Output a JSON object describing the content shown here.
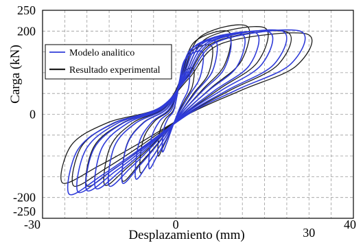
{
  "chart_data": {
    "type": "line",
    "xlabel": "Desplazamiento (mm)",
    "ylabel": "Carga (kN)",
    "xlim": [
      -30,
      40
    ],
    "ylim": [
      -250,
      250
    ],
    "x_ticks": [
      -30,
      0,
      30,
      40
    ],
    "y_ticks": [
      250,
      200,
      0,
      -200,
      -250
    ],
    "grid": true,
    "legend": "top-left",
    "series": [
      {
        "name": "Modelo analitico",
        "color": "#2f3bd8",
        "loops": [
          [
            [
              -3,
              -90
            ],
            [
              -2.8,
              -41
            ],
            [
              -1.8,
              -11
            ],
            [
              -0.5,
              8
            ],
            [
              0.3,
              45
            ],
            [
              1.1,
              88
            ],
            [
              3,
              100
            ],
            [
              2.8,
              60
            ],
            [
              1.5,
              30
            ],
            [
              0.4,
              2
            ],
            [
              -1.1,
              -41
            ],
            [
              -2,
              -68
            ]
          ],
          [
            [
              -6,
              -130
            ],
            [
              -5.5,
              -59
            ],
            [
              -3.6,
              -16
            ],
            [
              -0.9,
              12
            ],
            [
              0.6,
              68
            ],
            [
              2.1,
              132
            ],
            [
              6,
              150
            ],
            [
              5.5,
              90
            ],
            [
              3,
              45
            ],
            [
              0.7,
              3
            ],
            [
              -2.1,
              -59
            ],
            [
              -4.1,
              -98
            ]
          ],
          [
            [
              -9,
              -155
            ],
            [
              -8.3,
              -70
            ],
            [
              -5.4,
              -19
            ],
            [
              -1.4,
              14
            ],
            [
              0.9,
              79
            ],
            [
              3.2,
              154
            ],
            [
              9,
              175
            ],
            [
              8.3,
              105
            ],
            [
              4.5,
              53
            ],
            [
              1.1,
              4
            ],
            [
              -3.2,
              -70
            ],
            [
              -6.1,
              -116
            ]
          ],
          [
            [
              -12,
              -165
            ],
            [
              -11,
              -74
            ],
            [
              -7.2,
              -20
            ],
            [
              -1.8,
              15
            ],
            [
              1.2,
              83
            ],
            [
              4.2,
              163
            ],
            [
              12,
              185
            ],
            [
              11,
              111
            ],
            [
              6,
              56
            ],
            [
              1.4,
              4
            ],
            [
              -4.2,
              -74
            ],
            [
              -8.2,
              -124
            ]
          ],
          [
            [
              -15,
              -172
            ],
            [
              -13.8,
              -77
            ],
            [
              -9,
              -21
            ],
            [
              -2.3,
              15
            ],
            [
              1.5,
              86
            ],
            [
              5.3,
              169
            ],
            [
              15,
              192
            ],
            [
              13.8,
              115
            ],
            [
              7.5,
              58
            ],
            [
              1.8,
              4
            ],
            [
              -5.3,
              -77
            ],
            [
              -10.2,
              -129
            ]
          ],
          [
            [
              -18,
              -178
            ],
            [
              -16.6,
              -80
            ],
            [
              -10.8,
              -21
            ],
            [
              -2.7,
              16
            ],
            [
              1.8,
              88
            ],
            [
              6.3,
              172
            ],
            [
              18,
              196
            ],
            [
              16.6,
              118
            ],
            [
              9,
              59
            ],
            [
              2.2,
              4
            ],
            [
              -6.3,
              -80
            ],
            [
              -12.2,
              -134
            ]
          ],
          [
            [
              -20,
              -183
            ],
            [
              -18.4,
              -82
            ],
            [
              -12,
              -22
            ],
            [
              -3,
              16
            ],
            [
              2.1,
              89
            ],
            [
              7.4,
              174
            ],
            [
              21,
              198
            ],
            [
              19.3,
              119
            ],
            [
              10.5,
              59
            ],
            [
              2.5,
              4
            ],
            [
              -7,
              -82
            ],
            [
              -13.6,
              -137
            ]
          ],
          [
            [
              -22,
              -187
            ],
            [
              -20.2,
              -84
            ],
            [
              -13.2,
              -22
            ],
            [
              -3.3,
              16
            ],
            [
              2.4,
              90
            ],
            [
              8.4,
              176
            ],
            [
              24,
              200
            ],
            [
              22.1,
              120
            ],
            [
              12,
              60
            ],
            [
              2.9,
              4
            ],
            [
              -7.7,
              -84
            ],
            [
              -15,
              -140
            ]
          ],
          [
            [
              -24,
              -192
            ],
            [
              -22.1,
              -86
            ],
            [
              -14.4,
              -23
            ],
            [
              -3.6,
              16
            ],
            [
              2.8,
              90
            ],
            [
              9.8,
              176
            ],
            [
              28,
              200
            ],
            [
              25.8,
              120
            ],
            [
              14,
              60
            ],
            [
              3.4,
              4
            ],
            [
              -8.4,
              -86
            ],
            [
              -16.3,
              -144
            ]
          ]
        ]
      },
      {
        "name": "Resultado experimental",
        "color": "#1c1c1c",
        "loops": [
          [
            [
              -4,
              -100
            ],
            [
              -3.7,
              -45
            ],
            [
              -2.4,
              -12
            ],
            [
              -0.6,
              9
            ],
            [
              0.4,
              50
            ],
            [
              1.4,
              97
            ],
            [
              4,
              110
            ],
            [
              3.7,
              66
            ],
            [
              2,
              33
            ],
            [
              0.5,
              2
            ],
            [
              -1.4,
              -45
            ],
            [
              -2.7,
              -75
            ]
          ],
          [
            [
              -8,
              -140
            ],
            [
              -7.4,
              -63
            ],
            [
              -4.8,
              -17
            ],
            [
              -1.2,
              13
            ],
            [
              0.8,
              74
            ],
            [
              2.8,
              145
            ],
            [
              8,
              165
            ],
            [
              7.4,
              99
            ],
            [
              4,
              50
            ],
            [
              1,
              3
            ],
            [
              -2.8,
              -63
            ],
            [
              -5.4,
              -105
            ]
          ],
          [
            [
              -12,
              -160
            ],
            [
              -11,
              -72
            ],
            [
              -7.2,
              -19
            ],
            [
              -1.8,
              16
            ],
            [
              1.2,
              89
            ],
            [
              4.2,
              174
            ],
            [
              12,
              198
            ],
            [
              11,
              119
            ],
            [
              6,
              59
            ],
            [
              1.4,
              4
            ],
            [
              -4.2,
              -72
            ],
            [
              -8.2,
              -120
            ]
          ],
          [
            [
              -16,
              -170
            ],
            [
              -14.7,
              -77
            ],
            [
              -9.6,
              -20
            ],
            [
              -2.4,
              17
            ],
            [
              1.6,
              95
            ],
            [
              5.6,
              187
            ],
            [
              16,
              212
            ],
            [
              14.7,
              127
            ],
            [
              8,
              64
            ],
            [
              1.9,
              4
            ],
            [
              -5.6,
              -77
            ],
            [
              -10.9,
              -128
            ]
          ],
          [
            [
              -20,
              -172
            ],
            [
              -18.4,
              -77
            ],
            [
              -12,
              -21
            ],
            [
              -3,
              17
            ],
            [
              2,
              94
            ],
            [
              7,
              183
            ],
            [
              20,
              208
            ],
            [
              18.4,
              125
            ],
            [
              10,
              62
            ],
            [
              2.4,
              4
            ],
            [
              -7,
              -77
            ],
            [
              -13.6,
              -129
            ]
          ],
          [
            [
              -23,
              -172
            ],
            [
              -21.2,
              -77
            ],
            [
              -13.8,
              -21
            ],
            [
              -3.5,
              16
            ],
            [
              2.5,
              89
            ],
            [
              8.8,
              174
            ],
            [
              25,
              198
            ],
            [
              23,
              119
            ],
            [
              12.5,
              59
            ],
            [
              3,
              4
            ],
            [
              -8.1,
              -77
            ],
            [
              -15.6,
              -129
            ]
          ],
          [
            [
              -25.5,
              -165
            ],
            [
              -23.5,
              -74
            ],
            [
              -15.3,
              -20
            ],
            [
              -3.8,
              15
            ],
            [
              3,
              87
            ],
            [
              10.3,
              170
            ],
            [
              29.5,
              193
            ],
            [
              27.1,
              116
            ],
            [
              14.8,
              58
            ],
            [
              3.5,
              4
            ],
            [
              -8.9,
              -74
            ],
            [
              -17.3,
              -124
            ]
          ]
        ]
      }
    ]
  }
}
